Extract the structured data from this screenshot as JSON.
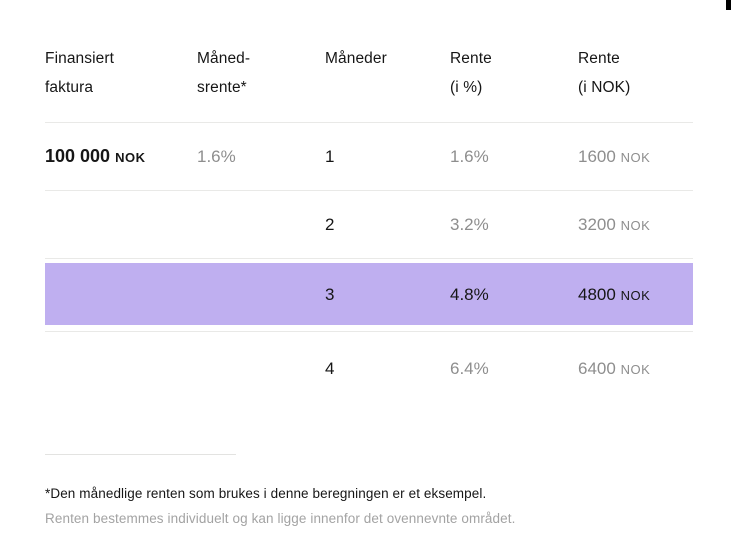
{
  "colors": {
    "highlight": "#bfaff0",
    "text_primary": "#161616",
    "text_muted": "#8e8e8e",
    "divider": "#e9e9e7"
  },
  "table": {
    "headers": [
      {
        "line1": "Finansiert",
        "line2": "faktura"
      },
      {
        "line1": "Måned-",
        "line2": "srente*"
      },
      {
        "line1": "Måneder",
        "line2": ""
      },
      {
        "line1": "Rente",
        "line2": "(i %)"
      },
      {
        "line1": "Rente",
        "line2": "(i NOK)"
      }
    ],
    "rows": [
      {
        "finansiert_amount": "100 000",
        "finansiert_currency": "NOK",
        "maanedsrente": "1.6%",
        "maaneder": "1",
        "rente_prosent": "1.6%",
        "rente_belop": "1600",
        "rente_currency": "NOK",
        "highlighted": false
      },
      {
        "maaneder": "2",
        "rente_prosent": "3.2%",
        "rente_belop": "3200",
        "rente_currency": "NOK",
        "highlighted": false
      },
      {
        "maaneder": "3",
        "rente_prosent": "4.8%",
        "rente_belop": "4800",
        "rente_currency": "NOK",
        "highlighted": true
      },
      {
        "maaneder": "4",
        "rente_prosent": "6.4%",
        "rente_belop": "6400",
        "rente_currency": "NOK",
        "highlighted": false
      }
    ]
  },
  "footnotes": {
    "line1": "*Den månedlige renten som brukes i denne beregningen er et eksempel.",
    "line2": "Renten bestemmes individuelt og kan ligge innenfor det ovennevnte området."
  }
}
